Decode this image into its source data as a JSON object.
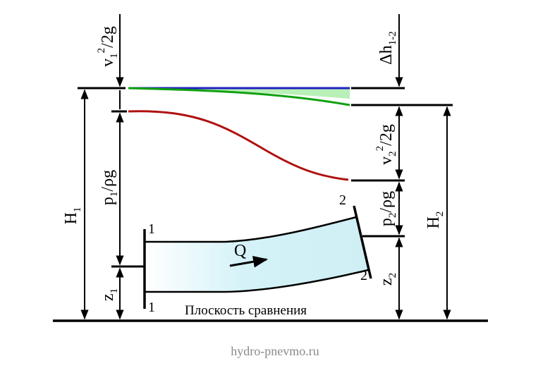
{
  "diagram": {
    "title": "",
    "labels": {
      "v1_head": {
        "main": "v",
        "sub": "1",
        "sup": "2",
        "rest": "/2g"
      },
      "dh_loss": {
        "main": "Δh",
        "sub": "1-2"
      },
      "v2_head": {
        "main": "v",
        "sub": "2",
        "sup": "2",
        "rest": "/2g"
      },
      "H1": {
        "main": "H",
        "sub": "1"
      },
      "H2": {
        "main": "H",
        "sub": "2"
      },
      "p1_head": {
        "main": "p",
        "sub": "1",
        "rest": "/ρg"
      },
      "p2_head": {
        "main": "p",
        "sub": "2",
        "rest": "/ρg"
      },
      "z1": {
        "main": "z",
        "sub": "1"
      },
      "z2": {
        "main": "z",
        "sub": "2"
      },
      "flow": "Q",
      "section1_top": "1",
      "section1_bottom": "1",
      "section2_top": "2",
      "section2_bottom": "2",
      "reference_plane": "Плоскость сравнения"
    },
    "colors": {
      "energy_line": "#2020c0",
      "energy_grade": "#10a010",
      "loss_fill": "#b8f0b8",
      "piezometric": "#b01010",
      "pipe_fill": "#d8f4f8",
      "lines": "#000000"
    }
  },
  "watermark": "hydro-pnevmo.ru"
}
